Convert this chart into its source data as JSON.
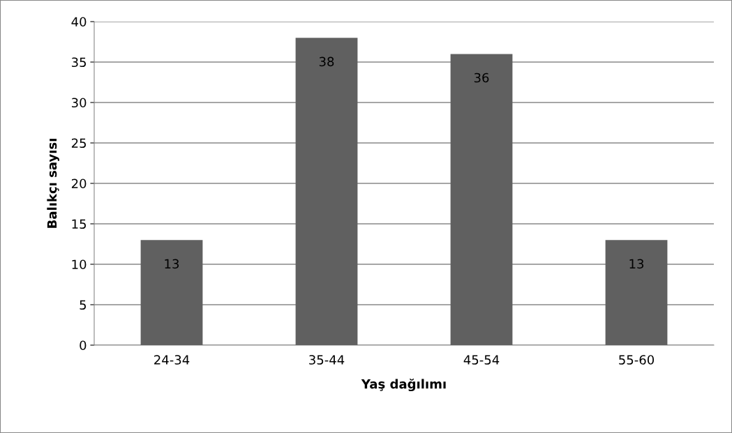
{
  "chart_data": {
    "type": "bar",
    "xlabel": "Yaş dağılımı",
    "ylabel": "Balıkçı sayısı",
    "categories": [
      "24-34",
      "35-44",
      "45-54",
      "55-60"
    ],
    "values": [
      13,
      38,
      36,
      13
    ],
    "color": "#606060",
    "ylim": [
      0,
      40
    ],
    "yticks": [
      0,
      5,
      10,
      15,
      20,
      25,
      30,
      35,
      40
    ],
    "grid": "y",
    "data_labels": true
  }
}
